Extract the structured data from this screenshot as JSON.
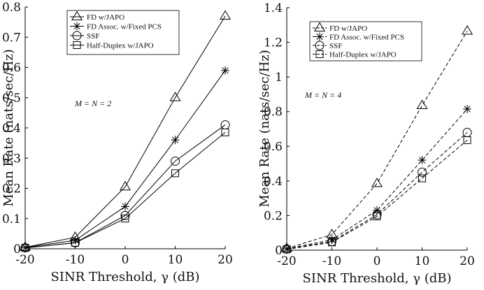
{
  "chart_data": [
    {
      "type": "line",
      "panel": "left",
      "x": [
        -20,
        -10,
        0,
        10,
        20
      ],
      "xticks": [
        -20,
        -10,
        0,
        10,
        20
      ],
      "xlim": [
        -20,
        20
      ],
      "ylim": [
        0,
        0.8
      ],
      "yticks": [
        0,
        0.1,
        0.2,
        0.3,
        0.4,
        0.5,
        0.6,
        0.7,
        0.8
      ],
      "ytick_labels": [
        "0",
        "0.1",
        "0.2",
        "0.3",
        "0.4",
        "0.5",
        "0.6",
        "0.7",
        "0.8"
      ],
      "xlabel": "SINR Threshold, γ (dB)",
      "ylabel": "Mean Rate (nats/sec/Hz)",
      "annotation": "M = N = 2",
      "line_style": "solid",
      "legend_position": "top-left",
      "series": [
        {
          "name": "FD w/JAPO",
          "marker": "triangle",
          "values": [
            0.005,
            0.038,
            0.205,
            0.5,
            0.77
          ]
        },
        {
          "name": "FD Assoc. w/Fixed PCS",
          "marker": "asterisk",
          "values": [
            0.004,
            0.028,
            0.14,
            0.36,
            0.59
          ]
        },
        {
          "name": "SSF",
          "marker": "circle",
          "values": [
            0.003,
            0.02,
            0.11,
            0.29,
            0.41
          ]
        },
        {
          "name": "Half-Duplex w/JAPO",
          "marker": "square",
          "values": [
            0.003,
            0.02,
            0.1,
            0.25,
            0.385
          ]
        }
      ]
    },
    {
      "type": "line",
      "panel": "right",
      "x": [
        -20,
        -10,
        0,
        10,
        20
      ],
      "xticks": [
        -20,
        -10,
        0,
        10,
        20
      ],
      "xlim": [
        -20,
        20
      ],
      "ylim": [
        0,
        1.4
      ],
      "yticks": [
        0,
        0.2,
        0.4,
        0.6,
        0.8,
        1,
        1.2,
        1.4
      ],
      "ytick_labels": [
        "0",
        "0.2",
        "0.4",
        "0.6",
        "0.8",
        "1",
        "1.2",
        "1.4"
      ],
      "xlabel": "SINR Threshold, γ (dB)",
      "ylabel": "Mean Rate (nats/sec/Hz)",
      "annotation": "M = N = 4",
      "line_style": "dashed",
      "legend_position": "top-left",
      "series": [
        {
          "name": "FD w/JAPO",
          "marker": "triangle",
          "values": [
            0.01,
            0.09,
            0.385,
            0.835,
            1.265
          ]
        },
        {
          "name": "FD Assoc. w/Fixed PCS",
          "marker": "asterisk",
          "values": [
            0.008,
            0.06,
            0.23,
            0.52,
            0.815
          ]
        },
        {
          "name": "SSF",
          "marker": "circle",
          "values": [
            0.006,
            0.05,
            0.205,
            0.45,
            0.68
          ]
        },
        {
          "name": "Half-Duplex w/JAPO",
          "marker": "square",
          "values": [
            0.005,
            0.045,
            0.195,
            0.415,
            0.635
          ]
        }
      ]
    }
  ]
}
